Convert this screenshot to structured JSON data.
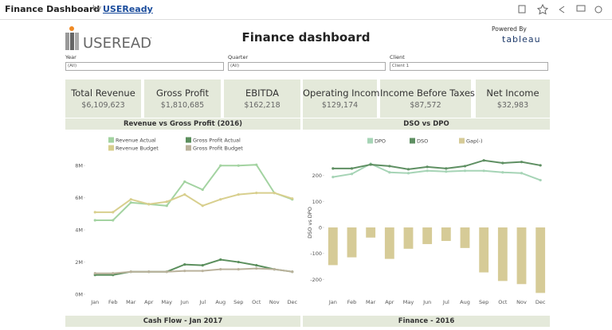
{
  "header": {
    "title": "Finance Dashboard",
    "by": "by",
    "author": "USEReady"
  },
  "logo": {
    "brand": "USEREADY",
    "powered_by": "Powered By",
    "tableau": "tableau"
  },
  "title": "Finance dashboard",
  "filters": [
    {
      "label": "Year",
      "value": "(All)"
    },
    {
      "label": "Quarter",
      "value": "(All)"
    },
    {
      "label": "Client",
      "value": "Client 1"
    }
  ],
  "kpis": [
    {
      "label": "Total Revenue",
      "value": "$6,109,623"
    },
    {
      "label": "Gross Profit",
      "value": "$1,810,685"
    },
    {
      "label": "EBITDA",
      "value": "$162,218"
    },
    {
      "label": "Operating Income",
      "value": "$129,174"
    },
    {
      "label": "Income Before Taxes",
      "value": "$87,572"
    },
    {
      "label": "Net Income",
      "value": "$32,983"
    }
  ],
  "sections": [
    "Cash Flow - Jan 2017",
    "Finance - 2016"
  ],
  "chart_data": [
    {
      "type": "line",
      "title": "Revenue vs Gross Profit (2016)",
      "categories": [
        "Jan",
        "Feb",
        "Mar",
        "Apr",
        "May",
        "Jun",
        "Jul",
        "Aug",
        "Sep",
        "Oct",
        "Nov",
        "Dec"
      ],
      "ylim": [
        0,
        9000000
      ],
      "yticks": [
        {
          "value": 0,
          "label": "0M"
        },
        {
          "value": 2000000,
          "label": "2M"
        },
        {
          "value": 4000000,
          "label": "4M"
        },
        {
          "value": 6000000,
          "label": "6M"
        },
        {
          "value": 8000000,
          "label": "8M"
        }
      ],
      "series": [
        {
          "name": "Revenue Actual",
          "color": "#a3d3a1",
          "values": [
            4600000,
            4600000,
            5700000,
            5600000,
            5500000,
            7000000,
            6500000,
            8000000,
            8000000,
            8050000,
            6300000,
            5900000
          ]
        },
        {
          "name": "Revenue Budget",
          "color": "#d8cf8e",
          "values": [
            5100000,
            5100000,
            5900000,
            5600000,
            5750000,
            6200000,
            5500000,
            5900000,
            6200000,
            6300000,
            6300000,
            5950000
          ]
        },
        {
          "name": "Gross Profit Actual",
          "color": "#5b8f5d",
          "values": [
            1200000,
            1200000,
            1400000,
            1400000,
            1400000,
            1850000,
            1800000,
            2150000,
            2000000,
            1800000,
            1550000,
            1400000
          ]
        },
        {
          "name": "Gross Profit Budget",
          "color": "#bab29c",
          "values": [
            1300000,
            1300000,
            1400000,
            1400000,
            1400000,
            1450000,
            1450000,
            1550000,
            1550000,
            1600000,
            1550000,
            1400000
          ]
        }
      ]
    },
    {
      "type": "combo",
      "title": "DSO vs DPO",
      "ylabel": "DSO vs DPO",
      "categories": [
        "Jan",
        "Feb",
        "Mar",
        "Apr",
        "May",
        "Jun",
        "Jul",
        "Aug",
        "Sep",
        "Oct",
        "Nov",
        "Dec"
      ],
      "ylim": [
        -260,
        300
      ],
      "yticks": [
        -200,
        -100,
        0,
        100,
        200
      ],
      "series": [
        {
          "name": "DPO",
          "type": "line",
          "color": "#a6d4b6",
          "values": [
            194,
            206,
            245,
            212,
            209,
            218,
            215,
            218,
            218,
            212,
            209,
            182
          ]
        },
        {
          "name": "DSO",
          "type": "line",
          "color": "#5e8f62",
          "values": [
            227,
            227,
            242,
            236,
            224,
            233,
            227,
            236,
            258,
            248,
            252,
            239
          ]
        },
        {
          "name": "Gap(-)",
          "type": "bar",
          "color": "#d6cb97",
          "values": [
            -145,
            -115,
            -39,
            -121,
            -82,
            -64,
            -52,
            -79,
            -173,
            -206,
            -218,
            -252
          ]
        }
      ]
    }
  ]
}
